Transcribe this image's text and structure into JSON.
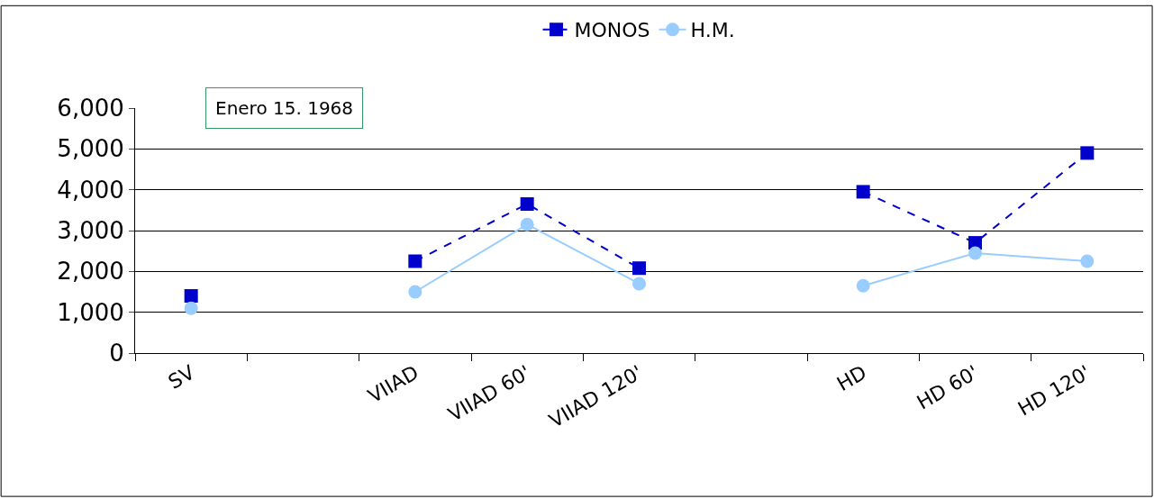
{
  "chart_data": {
    "type": "line",
    "categories": [
      "SV",
      null,
      "VIIAD",
      "VIIAD 60'",
      "VIIAD 120'",
      null,
      "HD",
      "HD 60'",
      "HD 120'"
    ],
    "series": [
      {
        "name": "MONOS",
        "color": "#0000cc",
        "line_style": "dashed",
        "marker": "square",
        "values": [
          1400,
          null,
          2250,
          3650,
          2080,
          null,
          3950,
          2700,
          4900
        ]
      },
      {
        "name": "H.M.",
        "color": "#99ccff",
        "line_style": "solid",
        "marker": "circle",
        "values": [
          1100,
          null,
          1500,
          3150,
          1700,
          null,
          1650,
          2450,
          2250
        ]
      }
    ],
    "ylim": [
      0,
      6000
    ],
    "yticks": [
      0,
      {
        "value": 1000,
        "label": "1,000"
      },
      {
        "value": 2000,
        "label": "2,000"
      },
      {
        "value": 3000,
        "label": "3,000"
      },
      {
        "value": 4000,
        "label": "4,000"
      },
      {
        "value": 5000,
        "label": "5,000"
      },
      {
        "value": 6000,
        "label": "6,000"
      }
    ],
    "grid": "y",
    "legend": "top",
    "annotations": [
      "Enero 15. 1968"
    ]
  }
}
